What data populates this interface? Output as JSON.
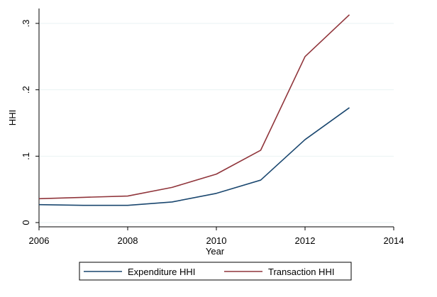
{
  "chart_data": {
    "type": "line",
    "title": "",
    "xlabel": "Year",
    "ylabel": "HHI",
    "xlim": [
      2006,
      2014
    ],
    "ylim": [
      0,
      0.3
    ],
    "x_ticks": [
      2006,
      2008,
      2010,
      2012,
      2014
    ],
    "x_tick_labels": [
      "2006",
      "2008",
      "2010",
      "2012",
      "2014"
    ],
    "y_ticks": [
      0,
      0.1,
      0.2,
      0.3
    ],
    "y_tick_labels": [
      "0",
      ".1",
      ".2",
      ".3"
    ],
    "grid": true,
    "legend_position": "bottom",
    "x": [
      2006,
      2007,
      2008,
      2009,
      2010,
      2011,
      2012,
      2013
    ],
    "series": [
      {
        "name": "Expenditure HHI",
        "color": "#1a476f",
        "values": [
          0.027,
          0.026,
          0.026,
          0.031,
          0.044,
          0.064,
          0.125,
          0.173
        ]
      },
      {
        "name": "Transaction HHI",
        "color": "#90353b",
        "values": [
          0.036,
          0.038,
          0.04,
          0.053,
          0.073,
          0.109,
          0.25,
          0.313
        ]
      }
    ]
  }
}
